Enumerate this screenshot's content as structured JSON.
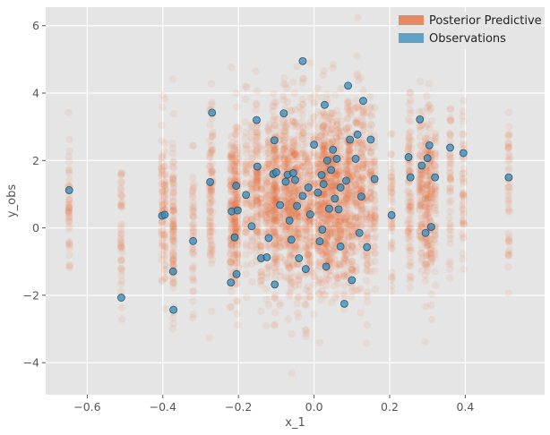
{
  "chart_data": {
    "type": "scatter",
    "title": "",
    "xlabel": "x_1",
    "ylabel": "y_obs",
    "xlim": [
      -0.71,
      0.61
    ],
    "ylim": [
      -4.95,
      6.55
    ],
    "xticks": [
      -0.6,
      -0.4,
      -0.2,
      0.0,
      0.2,
      0.4
    ],
    "xtick_labels": [
      "−0.6",
      "−0.4",
      "−0.2",
      "0.0",
      "0.2",
      "0.4"
    ],
    "yticks": [
      -4,
      -2,
      0,
      2,
      4,
      6
    ],
    "ytick_labels": [
      "−4",
      "−2",
      "0",
      "2",
      "4",
      "6"
    ],
    "grid": true,
    "legend_position": "top-right",
    "colors": {
      "posterior": "#e8622c",
      "observations": "#348abd",
      "plot_background": "#e5e5e5",
      "grid": "#ffffff"
    },
    "series": [
      {
        "name": "Posterior Predictive",
        "kind": "samples",
        "columns": [
          [
            -0.648,
            1.1
          ],
          [
            -0.51,
            -2.07
          ],
          [
            -0.402,
            0.36
          ],
          [
            -0.395,
            0.38
          ],
          [
            -0.373,
            -1.28
          ],
          [
            -0.372,
            -2.43
          ],
          [
            -0.32,
            -0.4
          ],
          [
            -0.275,
            1.35
          ],
          [
            -0.27,
            3.41
          ],
          [
            -0.22,
            -1.62
          ],
          [
            -0.218,
            0.48
          ],
          [
            -0.21,
            -0.3
          ],
          [
            -0.206,
            1.24
          ],
          [
            -0.202,
            0.51
          ],
          [
            -0.205,
            -1.38
          ],
          [
            -0.18,
            0.97
          ],
          [
            -0.165,
            0.04
          ],
          [
            -0.152,
            3.2
          ],
          [
            -0.15,
            1.8
          ],
          [
            -0.14,
            -0.9
          ],
          [
            -0.125,
            -0.88
          ],
          [
            -0.12,
            2.15
          ],
          [
            -0.108,
            1.58
          ],
          [
            -0.105,
            2.58
          ],
          [
            -0.104,
            -1.68
          ],
          [
            -0.1,
            1.62
          ],
          [
            -0.09,
            0.65
          ],
          [
            -0.08,
            3.4
          ],
          [
            -0.075,
            1.35
          ],
          [
            -0.07,
            1.55
          ],
          [
            -0.065,
            0.2
          ],
          [
            -0.06,
            -0.35
          ],
          [
            -0.055,
            1.62
          ],
          [
            -0.05,
            1.4
          ],
          [
            -0.045,
            0.65
          ],
          [
            -0.04,
            -0.9
          ],
          [
            -0.03,
            4.93
          ],
          [
            -0.022,
            -1.22
          ],
          [
            -0.015,
            1.2
          ],
          [
            -0.01,
            0.38
          ],
          [
            0.0,
            2.45
          ],
          [
            0.01,
            1.05
          ],
          [
            0.015,
            -0.42
          ],
          [
            0.02,
            1.55
          ],
          [
            0.025,
            1.3
          ],
          [
            0.028,
            3.65
          ],
          [
            0.032,
            -1.15
          ],
          [
            0.035,
            2.0
          ],
          [
            0.04,
            0.55
          ],
          [
            0.045,
            1.72
          ],
          [
            0.05,
            2.3
          ],
          [
            0.055,
            0.85
          ],
          [
            0.06,
            2.05
          ],
          [
            0.065,
            0.55
          ],
          [
            0.07,
            1.2
          ],
          [
            0.08,
            -2.25
          ],
          [
            0.085,
            1.4
          ],
          [
            0.09,
            4.2
          ],
          [
            0.095,
            2.6
          ],
          [
            0.1,
            -1.55
          ],
          [
            0.11,
            2.05
          ],
          [
            0.115,
            2.75
          ],
          [
            0.125,
            0.92
          ],
          [
            0.13,
            3.75
          ],
          [
            0.14,
            -0.58
          ],
          [
            0.15,
            2.6
          ],
          [
            0.16,
            1.45
          ],
          [
            0.205,
            0.38
          ],
          [
            0.25,
            2.1
          ],
          [
            0.255,
            1.5
          ],
          [
            0.28,
            3.2
          ],
          [
            0.285,
            1.85
          ],
          [
            0.295,
            -0.15
          ],
          [
            0.3,
            2.05
          ],
          [
            0.305,
            2.45
          ],
          [
            0.31,
            0.02
          ],
          [
            0.32,
            1.48
          ],
          [
            0.36,
            2.38
          ],
          [
            0.395,
            2.22
          ],
          [
            0.515,
            1.48
          ]
        ]
      },
      {
        "name": "Observations",
        "kind": "points",
        "points": [
          [
            -0.648,
            1.12
          ],
          [
            -0.51,
            -2.07
          ],
          [
            -0.402,
            0.36
          ],
          [
            -0.395,
            0.39
          ],
          [
            -0.373,
            -1.29
          ],
          [
            -0.372,
            -2.43
          ],
          [
            -0.32,
            -0.39
          ],
          [
            -0.275,
            1.36
          ],
          [
            -0.27,
            3.42
          ],
          [
            -0.22,
            -1.62
          ],
          [
            -0.218,
            0.49
          ],
          [
            -0.21,
            -0.28
          ],
          [
            -0.206,
            1.25
          ],
          [
            -0.205,
            -1.37
          ],
          [
            -0.202,
            0.52
          ],
          [
            -0.18,
            0.98
          ],
          [
            -0.165,
            0.05
          ],
          [
            -0.152,
            3.2
          ],
          [
            -0.15,
            1.82
          ],
          [
            -0.14,
            -0.9
          ],
          [
            -0.125,
            -0.87
          ],
          [
            -0.108,
            1.6
          ],
          [
            -0.105,
            2.6
          ],
          [
            -0.104,
            -1.68
          ],
          [
            -0.1,
            1.65
          ],
          [
            -0.09,
            0.68
          ],
          [
            -0.08,
            3.4
          ],
          [
            -0.075,
            1.37
          ],
          [
            -0.07,
            1.58
          ],
          [
            -0.065,
            0.22
          ],
          [
            -0.06,
            -0.35
          ],
          [
            -0.055,
            1.63
          ],
          [
            -0.05,
            1.42
          ],
          [
            -0.045,
            0.65
          ],
          [
            -0.04,
            -0.9
          ],
          [
            -0.03,
            4.95
          ],
          [
            -0.022,
            -1.22
          ],
          [
            -0.015,
            1.2
          ],
          [
            -0.01,
            0.4
          ],
          [
            0.0,
            2.47
          ],
          [
            0.01,
            1.05
          ],
          [
            0.015,
            -0.4
          ],
          [
            0.02,
            1.57
          ],
          [
            0.025,
            1.3
          ],
          [
            0.028,
            3.65
          ],
          [
            0.032,
            -1.15
          ],
          [
            0.035,
            2.0
          ],
          [
            0.04,
            0.57
          ],
          [
            0.045,
            1.72
          ],
          [
            0.05,
            2.32
          ],
          [
            0.055,
            0.87
          ],
          [
            0.06,
            2.05
          ],
          [
            0.065,
            0.55
          ],
          [
            0.07,
            1.2
          ],
          [
            0.08,
            -2.25
          ],
          [
            0.085,
            1.4
          ],
          [
            0.09,
            4.22
          ],
          [
            0.095,
            2.62
          ],
          [
            0.1,
            -1.55
          ],
          [
            0.11,
            2.05
          ],
          [
            0.115,
            2.77
          ],
          [
            0.125,
            0.93
          ],
          [
            0.13,
            3.77
          ],
          [
            0.14,
            -0.57
          ],
          [
            0.15,
            2.62
          ],
          [
            0.16,
            1.45
          ],
          [
            0.205,
            0.38
          ],
          [
            0.25,
            2.1
          ],
          [
            0.255,
            1.5
          ],
          [
            0.28,
            3.22
          ],
          [
            0.285,
            1.85
          ],
          [
            0.295,
            -0.15
          ],
          [
            0.3,
            2.07
          ],
          [
            0.305,
            2.45
          ],
          [
            0.31,
            0.03
          ],
          [
            0.32,
            1.5
          ],
          [
            0.36,
            2.38
          ],
          [
            0.395,
            2.22
          ],
          [
            0.515,
            1.5
          ],
          [
            0.022,
            -0.05
          ],
          [
            -0.03,
            0.95
          ],
          [
            0.07,
            -0.55
          ],
          [
            0.12,
            -0.15
          ],
          [
            -0.12,
            -0.3
          ]
        ]
      }
    ]
  }
}
